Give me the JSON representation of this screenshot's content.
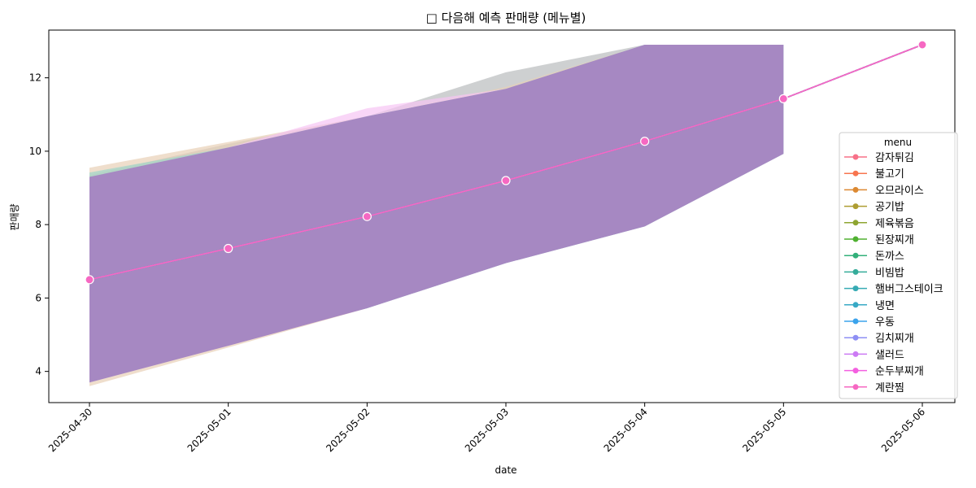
{
  "chart_data": {
    "type": "line",
    "title": "□ 다음해 예측 판매량 (메뉴별)",
    "xlabel": "date",
    "ylabel": "판매량",
    "x": [
      "2025-04-30",
      "2025-05-01",
      "2025-05-02",
      "2025-05-03",
      "2025-05-04",
      "2025-05-05",
      "2025-05-06"
    ],
    "ylim": [
      3.15,
      13.3
    ],
    "yticks": [
      4,
      6,
      8,
      10,
      12
    ],
    "grid": false,
    "legend": {
      "title": "menu",
      "placement": "right"
    },
    "mean_values": [
      6.5,
      7.35,
      8.22,
      9.2,
      10.27,
      11.43,
      12.9
    ],
    "series": [
      {
        "name": "감자튀김",
        "color": "#f77189",
        "values": [
          6.5,
          7.35,
          8.22,
          9.2,
          10.27,
          11.43,
          12.9
        ]
      },
      {
        "name": "불고기",
        "color": "#f7754f",
        "values": [
          6.5,
          7.35,
          8.22,
          9.2,
          10.27,
          11.43,
          12.9
        ]
      },
      {
        "name": "오므라이스",
        "color": "#dc8932",
        "values": [
          6.5,
          7.35,
          8.22,
          9.2,
          10.27,
          11.43,
          12.9
        ]
      },
      {
        "name": "공기밥",
        "color": "#ae9d31",
        "values": [
          6.5,
          7.35,
          8.22,
          9.2,
          10.27,
          11.43,
          12.9
        ]
      },
      {
        "name": "제육볶음",
        "color": "#8ea531",
        "values": [
          6.5,
          7.35,
          8.22,
          9.2,
          10.27,
          11.43,
          12.9
        ]
      },
      {
        "name": "된장찌개",
        "color": "#50b131",
        "values": [
          6.5,
          7.35,
          8.22,
          9.2,
          10.27,
          11.43,
          12.9
        ]
      },
      {
        "name": "돈까스",
        "color": "#33b07a",
        "values": [
          6.5,
          7.35,
          8.22,
          9.2,
          10.27,
          11.43,
          12.9
        ]
      },
      {
        "name": "비빔밥",
        "color": "#35ac9a",
        "values": [
          6.5,
          7.35,
          8.22,
          9.2,
          10.27,
          11.43,
          12.9
        ]
      },
      {
        "name": "햄버그스테이크",
        "color": "#37abb4",
        "values": [
          6.5,
          7.35,
          8.22,
          9.2,
          10.27,
          11.43,
          12.9
        ]
      },
      {
        "name": "냉면",
        "color": "#38a9c5",
        "values": [
          6.5,
          7.35,
          8.22,
          9.2,
          10.27,
          11.43,
          12.9
        ]
      },
      {
        "name": "우동",
        "color": "#3ba3ec",
        "values": [
          6.5,
          7.35,
          8.22,
          9.2,
          10.27,
          11.43,
          12.9
        ]
      },
      {
        "name": "김치찌개",
        "color": "#8e8ff4",
        "values": [
          6.5,
          7.35,
          8.22,
          9.2,
          10.27,
          11.43,
          12.9
        ]
      },
      {
        "name": "샐러드",
        "color": "#cc7af4",
        "values": [
          6.5,
          7.35,
          8.22,
          9.2,
          10.27,
          11.43,
          12.9
        ]
      },
      {
        "name": "순두부찌개",
        "color": "#f45fe0",
        "values": [
          6.5,
          7.35,
          8.22,
          9.2,
          10.27,
          11.43,
          12.9
        ]
      },
      {
        "name": "계란찜",
        "color": "#f668c2",
        "values": [
          6.5,
          7.35,
          8.22,
          9.2,
          10.27,
          11.43,
          12.9
        ]
      }
    ],
    "confidence_band": {
      "color": "#a688c2",
      "lower": [
        3.7,
        4.7,
        5.72,
        6.95,
        7.95,
        9.93,
        null
      ],
      "upper": [
        9.3,
        10.1,
        10.95,
        11.7,
        12.9,
        12.9,
        null
      ]
    },
    "band_outliers": [
      {
        "color": "#b9bcbd",
        "lower": [
          3.7,
          4.7,
          5.72,
          6.95,
          7.95,
          9.93,
          null
        ],
        "upper": [
          9.35,
          10.2,
          10.95,
          12.15,
          12.9,
          12.9,
          null
        ]
      },
      {
        "color": "#e8d0b6",
        "lower": [
          3.6,
          4.65,
          5.72,
          6.95,
          7.95,
          9.93,
          null
        ],
        "upper": [
          9.55,
          10.25,
          10.95,
          11.75,
          12.9,
          12.9,
          null
        ]
      },
      {
        "color": "#f6c4f3",
        "lower": [
          3.7,
          4.7,
          5.72,
          6.95,
          7.95,
          9.93,
          null
        ],
        "upper": [
          9.3,
          10.1,
          11.17,
          11.7,
          12.9,
          12.9,
          null
        ]
      },
      {
        "color": "#9fd6c9",
        "lower": [
          3.75,
          4.75,
          5.72,
          6.95,
          7.95,
          9.93,
          null
        ],
        "upper": [
          9.42,
          10.1,
          10.95,
          11.7,
          12.9,
          12.9,
          null
        ]
      },
      {
        "color": "#a9c7ec",
        "lower": [
          3.88,
          4.8,
          5.72,
          6.95,
          7.95,
          9.93,
          null
        ],
        "upper": [
          9.25,
          10.05,
          10.95,
          11.7,
          12.9,
          12.9,
          null
        ]
      }
    ]
  }
}
